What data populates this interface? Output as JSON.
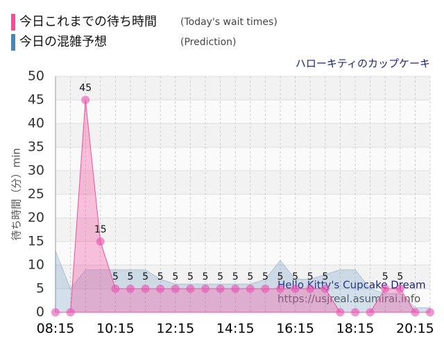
{
  "chart_data": {
    "type": "line-area",
    "chart_title": "ハローキティのカップケーキ",
    "y_label": "待ち時間（分）min",
    "watermark": [
      "Hello Kitty's Cupcake Dream",
      "https://usjreal.asumirai.info"
    ],
    "categories": [
      "08:15",
      null,
      null,
      null,
      "10:15",
      null,
      null,
      null,
      "12:15",
      null,
      null,
      null,
      "14:15",
      null,
      null,
      null,
      "16:15",
      null,
      null,
      null,
      "18:15",
      null,
      null,
      null,
      "20:15",
      null
    ],
    "series": [
      {
        "name": "今日これまでの待ち時間",
        "legend_note": "(Today's wait times)",
        "color": "#f0509a",
        "values": [
          0,
          0,
          45,
          15,
          5,
          5,
          5,
          5,
          5,
          5,
          5,
          5,
          5,
          5,
          5,
          5,
          5,
          5,
          5,
          0,
          0,
          0,
          5,
          5,
          0,
          0
        ]
      },
      {
        "name": "今日の混雑予想",
        "legend_note": "(Prediction)",
        "color": "#4a86b4",
        "values": [
          13,
          5,
          9,
          9,
          9,
          9,
          9,
          7,
          6,
          6,
          6,
          6,
          6,
          6,
          7,
          11,
          7,
          7,
          8,
          9,
          9,
          5,
          4,
          4,
          1,
          1
        ]
      }
    ],
    "ylim": [
      0,
      50
    ],
    "yticks": [
      0,
      5,
      10,
      15,
      20,
      25,
      30,
      35,
      40,
      45,
      50
    ],
    "grid": true
  }
}
